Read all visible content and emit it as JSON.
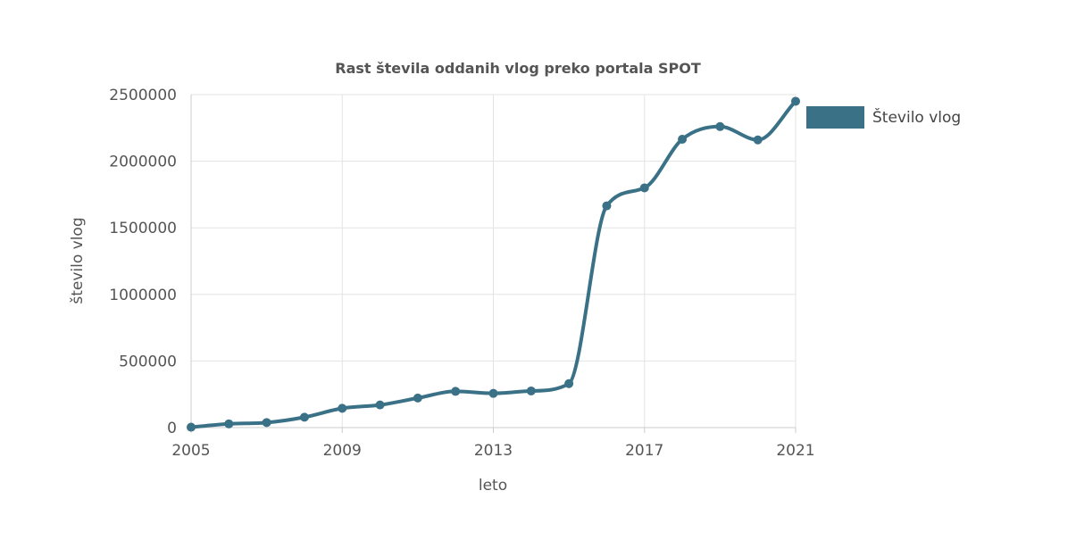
{
  "chart_data": {
    "type": "line",
    "title": "Rast števila oddanih vlog preko portala SPOT",
    "xlabel": "leto",
    "ylabel": "število vlog",
    "x": [
      2005,
      2006,
      2007,
      2008,
      2009,
      2010,
      2011,
      2012,
      2013,
      2014,
      2015,
      2016,
      2017,
      2018,
      2019,
      2020,
      2021
    ],
    "series": [
      {
        "name": "Število vlog",
        "values": [
          3000,
          28000,
          38000,
          78000,
          145000,
          170000,
          222000,
          272000,
          257000,
          275000,
          330000,
          1665000,
          1800000,
          2165000,
          2260000,
          2160000,
          2450000
        ]
      }
    ],
    "xlim": [
      2005,
      2021
    ],
    "ylim": [
      0,
      2500000
    ],
    "x_ticks": [
      "2005",
      "2009",
      "2013",
      "2017",
      "2021"
    ],
    "y_ticks": [
      "0",
      "500000",
      "1000000",
      "1500000",
      "2000000",
      "2500000"
    ],
    "grid": true,
    "legend": "right",
    "colors": {
      "series": "#3a7186",
      "grid": "#e3e3e3",
      "text": "#555555"
    }
  }
}
